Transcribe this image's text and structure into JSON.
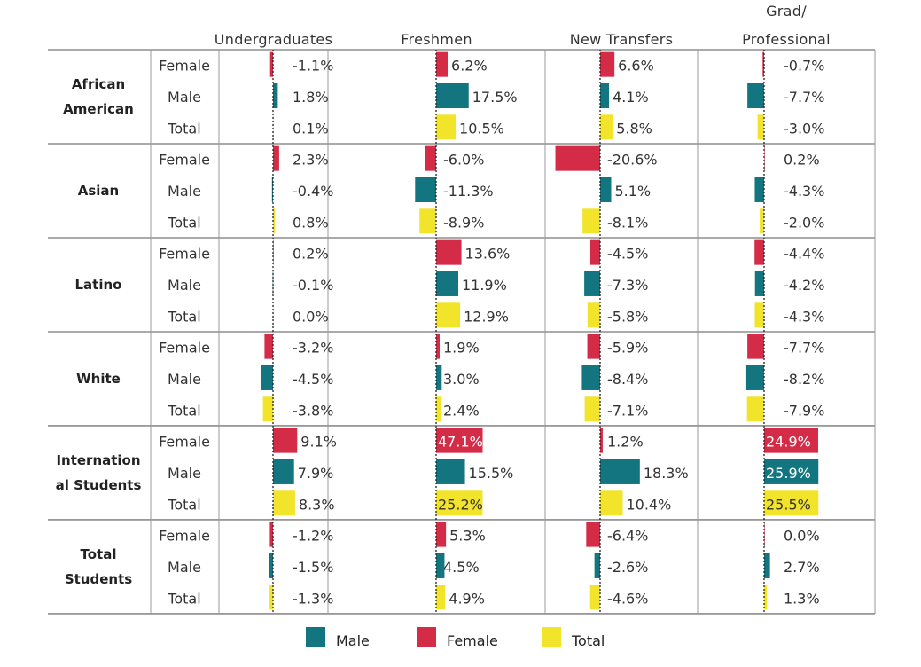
{
  "chart_data": {
    "type": "bar",
    "columns": [
      "Undergraduates",
      "Freshmen",
      "New Transfers",
      "Grad/ Professional"
    ],
    "column_label_lines": [
      [
        "Undergraduates"
      ],
      [
        "Freshmen"
      ],
      [
        "New Transfers"
      ],
      [
        "Grad/",
        "Professional"
      ]
    ],
    "row_labels": [
      "Female",
      "Male",
      "Total"
    ],
    "groups": [
      {
        "name": "African American",
        "name_lines": [
          "African",
          "American"
        ],
        "rows": [
          {
            "label": "Female",
            "values": [
              -1.1,
              6.2,
              6.6,
              -0.7
            ],
            "texts": [
              "-1.1%",
              "6.2%",
              "6.6%",
              "-0.7%"
            ]
          },
          {
            "label": "Male",
            "values": [
              1.8,
              17.5,
              4.1,
              -7.7
            ],
            "texts": [
              "1.8%",
              "17.5%",
              "4.1%",
              "-7.7%"
            ]
          },
          {
            "label": "Total",
            "values": [
              0.1,
              10.5,
              5.8,
              -3.0
            ],
            "texts": [
              "0.1%",
              "10.5%",
              "5.8%",
              "-3.0%"
            ]
          }
        ]
      },
      {
        "name": "Asian",
        "name_lines": [
          "Asian"
        ],
        "rows": [
          {
            "label": "Female",
            "values": [
              2.3,
              -6.0,
              -20.6,
              0.2
            ],
            "texts": [
              "2.3%",
              "-6.0%",
              "-20.6%",
              "0.2%"
            ]
          },
          {
            "label": "Male",
            "values": [
              -0.4,
              -11.3,
              5.1,
              -4.3
            ],
            "texts": [
              "-0.4%",
              "-11.3%",
              "5.1%",
              "-4.3%"
            ]
          },
          {
            "label": "Total",
            "values": [
              0.8,
              -8.9,
              -8.1,
              -2.0
            ],
            "texts": [
              "0.8%",
              "-8.9%",
              "-8.1%",
              "-2.0%"
            ]
          }
        ]
      },
      {
        "name": "Latino",
        "name_lines": [
          "Latino"
        ],
        "rows": [
          {
            "label": "Female",
            "values": [
              0.2,
              13.6,
              -4.5,
              -4.4
            ],
            "texts": [
              "0.2%",
              "13.6%",
              "-4.5%",
              "-4.4%"
            ]
          },
          {
            "label": "Male",
            "values": [
              -0.1,
              11.9,
              -7.3,
              -4.2
            ],
            "texts": [
              "-0.1%",
              "11.9%",
              "-7.3%",
              "-4.2%"
            ]
          },
          {
            "label": "Total",
            "values": [
              0.0,
              12.9,
              -5.8,
              -4.3
            ],
            "texts": [
              "0.0%",
              "12.9%",
              "-5.8%",
              "-4.3%"
            ]
          }
        ]
      },
      {
        "name": "White",
        "name_lines": [
          "White"
        ],
        "rows": [
          {
            "label": "Female",
            "values": [
              -3.2,
              1.9,
              -5.9,
              -7.7
            ],
            "texts": [
              "-3.2%",
              "1.9%",
              "-5.9%",
              "-7.7%"
            ]
          },
          {
            "label": "Male",
            "values": [
              -4.5,
              3.0,
              -8.4,
              -8.2
            ],
            "texts": [
              "-4.5%",
              "3.0%",
              "-8.4%",
              "-8.2%"
            ]
          },
          {
            "label": "Total",
            "values": [
              -3.8,
              2.4,
              -7.1,
              -7.9
            ],
            "texts": [
              "-3.8%",
              "2.4%",
              "-7.1%",
              "-7.9%"
            ]
          }
        ]
      },
      {
        "name": "International Students",
        "name_lines": [
          "Internation",
          "al Students"
        ],
        "rows": [
          {
            "label": "Female",
            "values": [
              9.1,
              47.1,
              1.2,
              24.9
            ],
            "texts": [
              "9.1%",
              "47.1%",
              "1.2%",
              "24.9%"
            ]
          },
          {
            "label": "Male",
            "values": [
              7.9,
              15.5,
              18.3,
              25.9
            ],
            "texts": [
              "7.9%",
              "15.5%",
              "18.3%",
              "25.9%"
            ]
          },
          {
            "label": "Total",
            "values": [
              8.3,
              25.2,
              10.4,
              25.5
            ],
            "texts": [
              "8.3%",
              "25.2%",
              "10.4%",
              "25.5%"
            ]
          }
        ]
      },
      {
        "name": "Total Students",
        "name_lines": [
          "Total",
          "Students"
        ],
        "rows": [
          {
            "label": "Female",
            "values": [
              -1.2,
              5.3,
              -6.4,
              0.0
            ],
            "texts": [
              "-1.2%",
              "5.3%",
              "-6.4%",
              "0.0%"
            ]
          },
          {
            "label": "Male",
            "values": [
              -1.5,
              4.5,
              -2.6,
              2.7
            ],
            "texts": [
              "-1.5%",
              "4.5%",
              "-2.6%",
              "2.7%"
            ]
          },
          {
            "label": "Total",
            "values": [
              -1.3,
              4.9,
              -4.6,
              1.3
            ],
            "texts": [
              "-1.3%",
              "4.9%",
              "-4.6%",
              "1.3%"
            ]
          }
        ]
      }
    ],
    "legend": [
      {
        "name": "Male",
        "color": "#137580"
      },
      {
        "name": "Female",
        "color": "#d42b47"
      },
      {
        "name": "Total",
        "color": "#f2e32b"
      }
    ],
    "colors": {
      "Female": "#d42b47",
      "Male": "#137580",
      "Total": "#f2e32b"
    },
    "xlim": [
      -25,
      25
    ],
    "bars_clipped_at_limit": true,
    "legend_position": "bottom"
  }
}
